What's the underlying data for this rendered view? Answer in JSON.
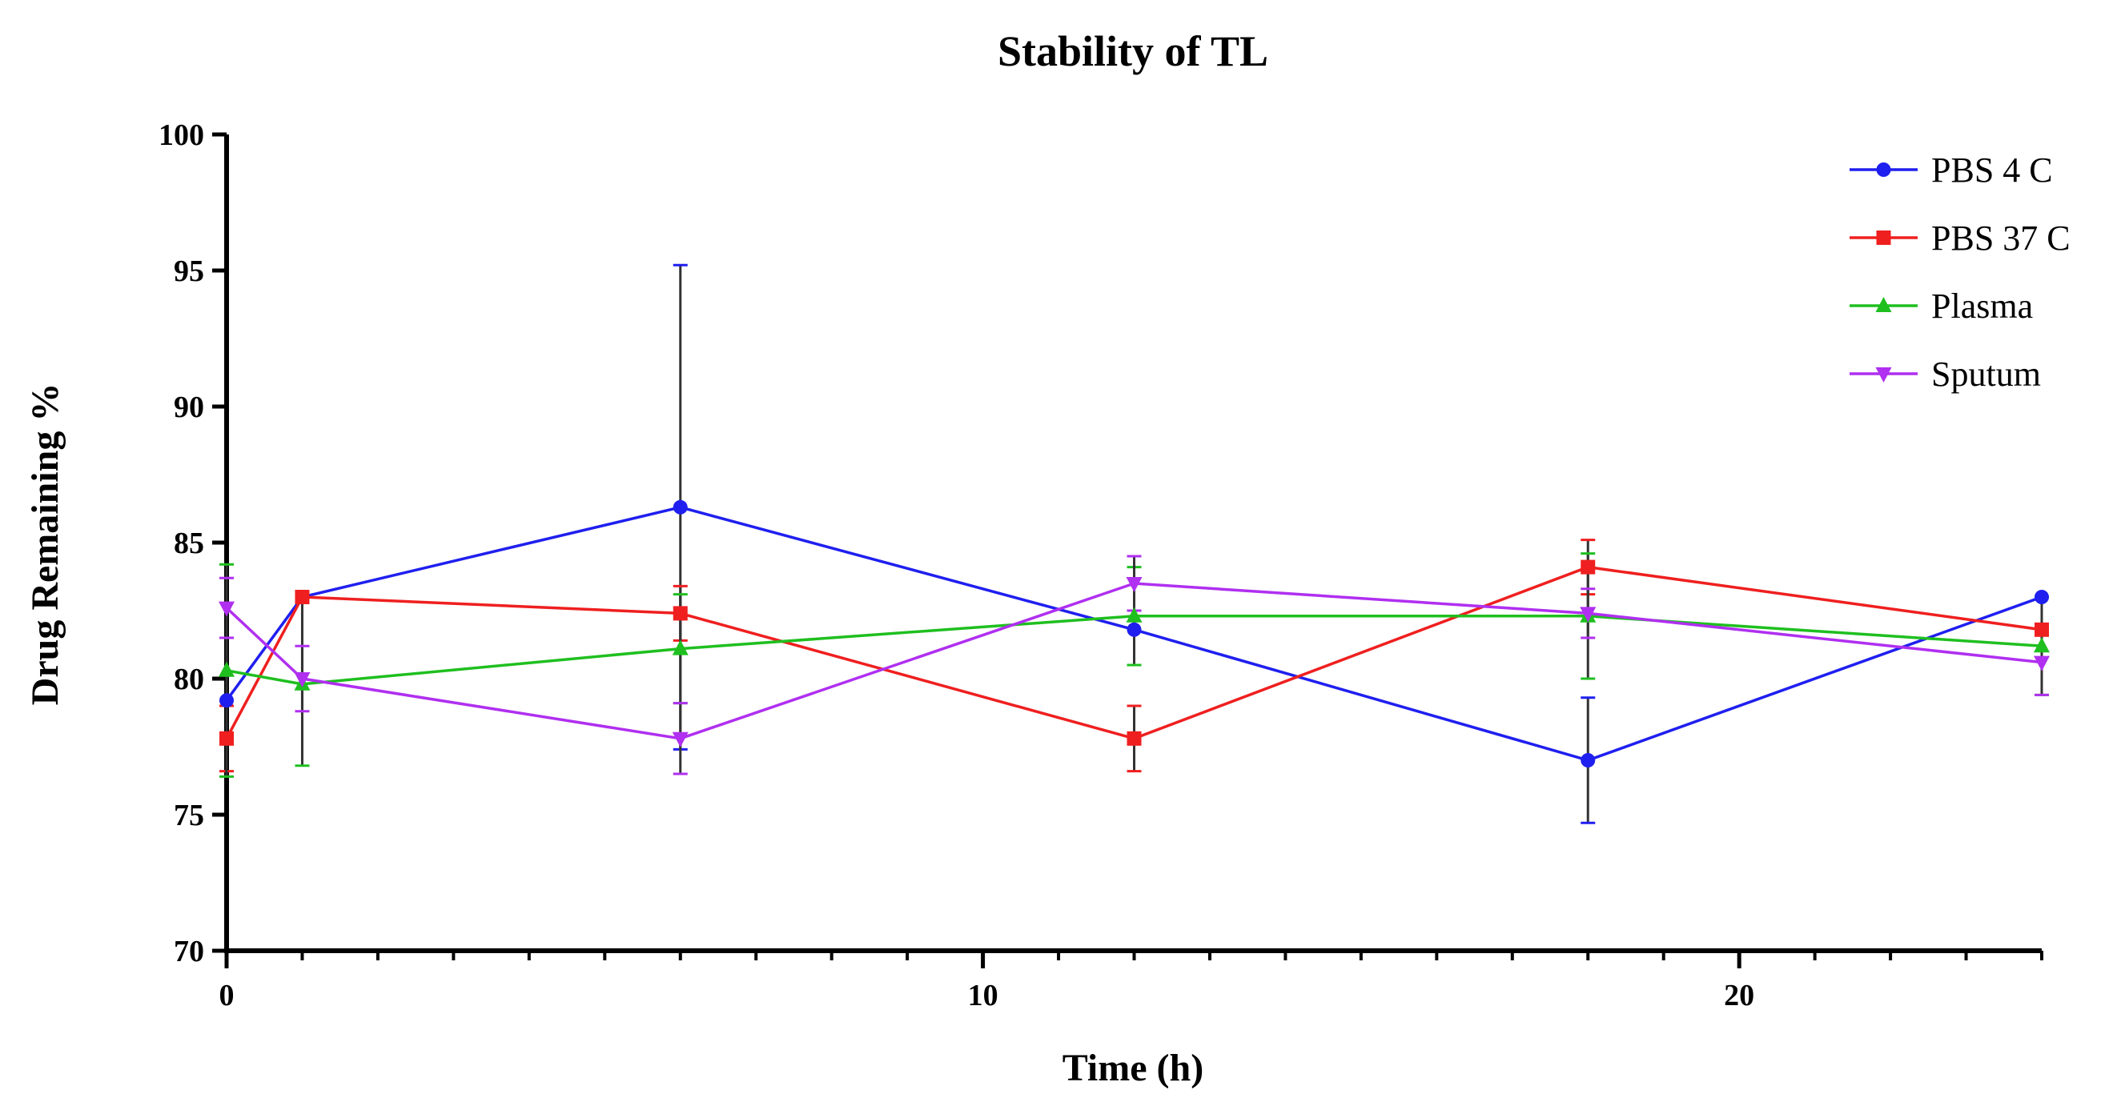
{
  "chart_data": {
    "type": "line",
    "title": "Stability of TL",
    "xlabel": "Time (h)",
    "ylabel": "Drug Remaining %",
    "xlim": [
      0,
      24
    ],
    "ylim": [
      70,
      100
    ],
    "x_ticks": [
      0,
      10,
      20
    ],
    "x_tick_labels": [
      "0",
      "10",
      "20"
    ],
    "x_minor_step": 1,
    "y_ticks": [
      70,
      75,
      80,
      85,
      90,
      95,
      100
    ],
    "y_tick_labels": [
      "70",
      "75",
      "80",
      "85",
      "90",
      "95",
      "100"
    ],
    "legend_position": "top-right",
    "error_bar_color": "#333333",
    "series": [
      {
        "name": "PBS 4 C",
        "color": "#1f1fef",
        "marker": "circle",
        "x": [
          0,
          1,
          6,
          12,
          18,
          24
        ],
        "y": [
          79.2,
          83.0,
          86.3,
          81.8,
          77.0,
          83.0
        ],
        "err": [
          0.0,
          0.0,
          8.9,
          0.0,
          2.3,
          0.0
        ]
      },
      {
        "name": "PBS 37 C",
        "color": "#ef1f1f",
        "marker": "square",
        "x": [
          0,
          1,
          6,
          12,
          18,
          24
        ],
        "y": [
          77.8,
          83.0,
          82.4,
          77.8,
          84.1,
          81.8
        ],
        "err": [
          1.2,
          0.0,
          1.0,
          1.2,
          1.0,
          0.0
        ]
      },
      {
        "name": "Plasma",
        "color": "#1fbf1f",
        "marker": "triangle-up",
        "x": [
          0,
          1,
          6,
          12,
          18,
          24
        ],
        "y": [
          80.3,
          79.8,
          81.1,
          82.3,
          82.3,
          81.2
        ],
        "err": [
          3.9,
          3.0,
          2.0,
          1.8,
          2.3,
          1.8
        ]
      },
      {
        "name": "Sputum",
        "color": "#b02ff0",
        "marker": "triangle-down",
        "x": [
          0,
          1,
          6,
          12,
          18,
          24
        ],
        "y": [
          82.6,
          80.0,
          77.8,
          83.5,
          82.4,
          80.6
        ],
        "err": [
          1.1,
          1.2,
          1.3,
          1.0,
          0.9,
          1.2
        ]
      }
    ]
  }
}
